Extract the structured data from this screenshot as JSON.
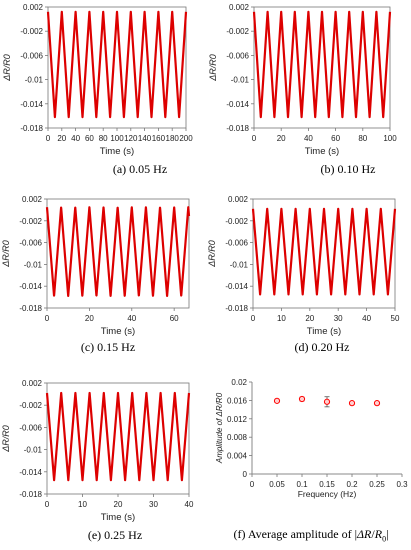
{
  "panels": [
    {
      "caption": "(a) 0.05 Hz",
      "chart_data": {
        "type": "line",
        "xlabel": "Time (s)",
        "ylabel": "ΔR/R0",
        "xlim": [
          0,
          200
        ],
        "ylim": [
          -0.018,
          0.002
        ],
        "xticks": [
          0,
          20,
          40,
          60,
          80,
          100,
          120,
          140,
          160,
          180,
          200
        ],
        "yticks": [
          0.002,
          -0.002,
          -0.006,
          -0.01,
          -0.014,
          -0.018
        ],
        "ytick_labels": [
          "0.002",
          "-0.002",
          "-0.006",
          "-0.01",
          "-0.014",
          "-0.018"
        ],
        "signal": {
          "frequency_hz": 0.05,
          "max": 0.0012,
          "min": -0.0162,
          "start_phase": "peak"
        },
        "series_color": "#dd0000",
        "grid": false
      }
    },
    {
      "caption": "(b) 0.10 Hz",
      "chart_data": {
        "type": "line",
        "xlabel": "Time (s)",
        "ylabel": "ΔR/R0",
        "xlim": [
          0,
          100
        ],
        "ylim": [
          -0.018,
          0.002
        ],
        "xticks": [
          0,
          20,
          40,
          60,
          80,
          100
        ],
        "yticks": [
          0.002,
          -0.002,
          -0.006,
          -0.01,
          -0.014,
          -0.018
        ],
        "ytick_labels": [
          "0.002",
          "-0.002",
          "-0.006",
          "-0.01",
          "-0.014",
          "-0.018"
        ],
        "signal": {
          "frequency_hz": 0.1,
          "max": 0.0012,
          "min": -0.0162,
          "start_phase": "peak"
        },
        "series_color": "#dd0000",
        "grid": false
      }
    },
    {
      "caption": "(c) 0.15 Hz",
      "chart_data": {
        "type": "line",
        "xlabel": "Time (s)",
        "ylabel": "ΔR/R0",
        "xlim": [
          0,
          67
        ],
        "ylim": [
          -0.018,
          0.002
        ],
        "xticks": [
          0,
          20,
          40,
          60
        ],
        "yticks": [
          0.002,
          -0.002,
          -0.006,
          -0.01,
          -0.014,
          -0.018
        ],
        "ytick_labels": [
          "0.002",
          "-0.002",
          "-0.006",
          "-0.01",
          "-0.014",
          "-0.018"
        ],
        "signal": {
          "frequency_hz": 0.15,
          "max": 0.0005,
          "min": -0.0158,
          "start_phase": "peak"
        },
        "series_color": "#dd0000",
        "grid": false
      }
    },
    {
      "caption": "(d) 0.20 Hz",
      "chart_data": {
        "type": "line",
        "xlabel": "Time (s)",
        "ylabel": "ΔR/R0",
        "xlim": [
          0,
          50
        ],
        "ylim": [
          -0.018,
          0.002
        ],
        "xticks": [
          0,
          10,
          20,
          30,
          40,
          50
        ],
        "yticks": [
          0.002,
          -0.002,
          -0.006,
          -0.01,
          -0.014,
          -0.018
        ],
        "ytick_labels": [
          "0.002",
          "-0.002",
          "-0.006",
          "-0.01",
          "-0.014",
          "-0.018"
        ],
        "signal": {
          "frequency_hz": 0.2,
          "max": 0.0002,
          "min": -0.0155,
          "start_phase": "peak"
        },
        "series_color": "#dd0000",
        "grid": false
      }
    },
    {
      "caption": "(e) 0.25 Hz",
      "chart_data": {
        "type": "line",
        "xlabel": "Time (s)",
        "ylabel": "ΔR/R0",
        "xlim": [
          0,
          40
        ],
        "ylim": [
          -0.018,
          0.002
        ],
        "xticks": [
          0,
          10,
          20,
          30,
          40
        ],
        "yticks": [
          0.002,
          -0.002,
          -0.006,
          -0.01,
          -0.014,
          -0.018
        ],
        "ytick_labels": [
          "0.002",
          "-0.002",
          "-0.006",
          "-0.01",
          "-0.014",
          "-0.018"
        ],
        "signal": {
          "frequency_hz": 0.25,
          "max": 0.0002,
          "min": -0.0155,
          "start_phase": "peak"
        },
        "series_color": "#dd0000",
        "grid": false
      }
    },
    {
      "caption": "(f) Average amplitude of |ΔR/R0|",
      "chart_data": {
        "type": "scatter",
        "xlabel": "Frequency (Hz)",
        "ylabel": "Amplitude of  ΔR/R0",
        "xlim": [
          0,
          0.3
        ],
        "ylim": [
          0,
          0.02
        ],
        "xticks": [
          0,
          0.05,
          0.1,
          0.15,
          0.2,
          0.25,
          0.3
        ],
        "xtick_labels": [
          "0",
          "0.05",
          "0.1",
          "0.15",
          "0.2",
          "0.25",
          "0.3"
        ],
        "yticks": [
          0,
          0.004,
          0.008,
          0.012,
          0.016,
          0.02
        ],
        "ytick_labels": [
          "0",
          "0.004",
          "0.008",
          "0.012",
          "0.016",
          "0.02"
        ],
        "x": [
          0.05,
          0.1,
          0.15,
          0.2,
          0.25
        ],
        "y": [
          0.0159,
          0.0163,
          0.0157,
          0.0154,
          0.0154
        ],
        "yerr": [
          0.0003,
          0.0004,
          0.0011,
          0.0003,
          0.0003
        ],
        "marker_color": "#ff0000",
        "marker_fill": "#ffd0d0",
        "grid": false
      }
    }
  ]
}
